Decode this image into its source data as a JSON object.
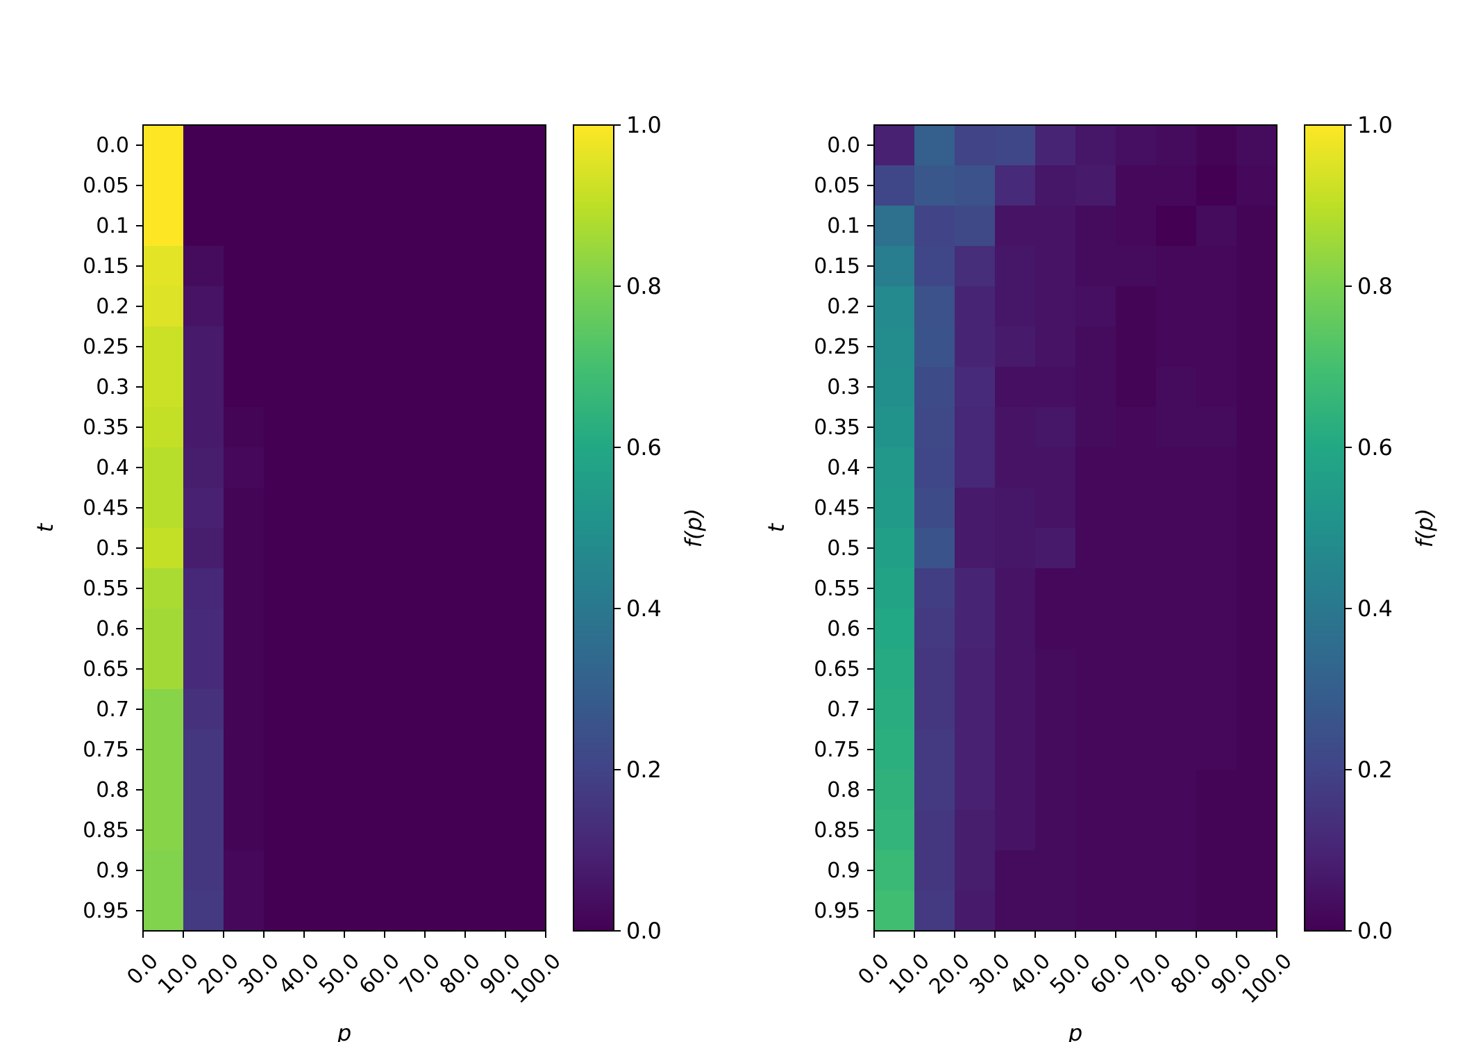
{
  "chart_data": [
    {
      "type": "heatmap",
      "title": "",
      "xlabel": "p",
      "ylabel": "t",
      "colorbar_label": "f(p)",
      "colormap": "viridis",
      "clim": [
        0.0,
        1.0
      ],
      "x_tick_labels": [
        "0.0",
        "10.0",
        "20.0",
        "30.0",
        "40.0",
        "50.0",
        "60.0",
        "70.0",
        "80.0",
        "90.0",
        "100.0"
      ],
      "y_tick_labels": [
        "0.0",
        "0.05",
        "0.1",
        "0.15",
        "0.2",
        "0.25",
        "0.3",
        "0.35",
        "0.4",
        "0.45",
        "0.5",
        "0.55",
        "0.6",
        "0.65",
        "0.7",
        "0.75",
        "0.8",
        "0.85",
        "0.9",
        "0.95"
      ],
      "colorbar_ticks": [
        "0.0",
        "0.2",
        "0.4",
        "0.6",
        "0.8",
        "1.0"
      ],
      "values": [
        [
          1.0,
          0.0,
          0.0,
          0.0,
          0.0,
          0.0,
          0.0,
          0.0,
          0.0,
          0.0
        ],
        [
          1.0,
          0.0,
          0.0,
          0.0,
          0.0,
          0.0,
          0.0,
          0.0,
          0.0,
          0.0
        ],
        [
          1.0,
          0.0,
          0.0,
          0.0,
          0.0,
          0.0,
          0.0,
          0.0,
          0.0,
          0.0
        ],
        [
          0.96,
          0.03,
          0.0,
          0.0,
          0.0,
          0.0,
          0.0,
          0.0,
          0.0,
          0.0
        ],
        [
          0.95,
          0.05,
          0.0,
          0.0,
          0.0,
          0.0,
          0.0,
          0.0,
          0.0,
          0.0
        ],
        [
          0.92,
          0.07,
          0.0,
          0.0,
          0.0,
          0.0,
          0.0,
          0.0,
          0.0,
          0.0
        ],
        [
          0.92,
          0.07,
          0.0,
          0.0,
          0.0,
          0.0,
          0.0,
          0.0,
          0.0,
          0.0
        ],
        [
          0.91,
          0.07,
          0.01,
          0.0,
          0.0,
          0.0,
          0.0,
          0.0,
          0.0,
          0.0
        ],
        [
          0.89,
          0.08,
          0.02,
          0.0,
          0.0,
          0.0,
          0.0,
          0.0,
          0.0,
          0.0
        ],
        [
          0.89,
          0.09,
          0.01,
          0.0,
          0.0,
          0.0,
          0.0,
          0.0,
          0.0,
          0.0
        ],
        [
          0.91,
          0.08,
          0.01,
          0.0,
          0.0,
          0.0,
          0.0,
          0.0,
          0.0,
          0.0
        ],
        [
          0.87,
          0.11,
          0.01,
          0.0,
          0.0,
          0.0,
          0.0,
          0.0,
          0.0,
          0.0
        ],
        [
          0.86,
          0.12,
          0.01,
          0.0,
          0.0,
          0.0,
          0.0,
          0.0,
          0.0,
          0.0
        ],
        [
          0.86,
          0.12,
          0.01,
          0.0,
          0.0,
          0.0,
          0.0,
          0.0,
          0.0,
          0.0
        ],
        [
          0.82,
          0.14,
          0.01,
          0.0,
          0.0,
          0.0,
          0.0,
          0.0,
          0.0,
          0.0
        ],
        [
          0.82,
          0.16,
          0.01,
          0.0,
          0.0,
          0.0,
          0.0,
          0.0,
          0.0,
          0.0
        ],
        [
          0.82,
          0.16,
          0.01,
          0.0,
          0.0,
          0.0,
          0.0,
          0.0,
          0.0,
          0.0
        ],
        [
          0.82,
          0.16,
          0.01,
          0.0,
          0.0,
          0.0,
          0.0,
          0.0,
          0.0,
          0.0
        ],
        [
          0.81,
          0.16,
          0.02,
          0.0,
          0.0,
          0.0,
          0.0,
          0.0,
          0.0,
          0.0
        ],
        [
          0.81,
          0.17,
          0.02,
          0.0,
          0.0,
          0.0,
          0.0,
          0.0,
          0.0,
          0.0
        ]
      ]
    },
    {
      "type": "heatmap",
      "title": "",
      "xlabel": "p",
      "ylabel": "t",
      "colorbar_label": "f(p)",
      "colormap": "viridis",
      "clim": [
        0.0,
        1.0
      ],
      "x_tick_labels": [
        "0.0",
        "10.0",
        "20.0",
        "30.0",
        "40.0",
        "50.0",
        "60.0",
        "70.0",
        "80.0",
        "90.0",
        "100.0"
      ],
      "y_tick_labels": [
        "0.0",
        "0.05",
        "0.1",
        "0.15",
        "0.2",
        "0.25",
        "0.3",
        "0.35",
        "0.4",
        "0.45",
        "0.5",
        "0.55",
        "0.6",
        "0.65",
        "0.7",
        "0.75",
        "0.8",
        "0.85",
        "0.9",
        "0.95"
      ],
      "colorbar_ticks": [
        "0.0",
        "0.2",
        "0.4",
        "0.6",
        "0.8",
        "1.0"
      ],
      "values": [
        [
          0.09,
          0.3,
          0.2,
          0.21,
          0.1,
          0.06,
          0.04,
          0.03,
          0.01,
          0.03
        ],
        [
          0.21,
          0.27,
          0.25,
          0.12,
          0.06,
          0.07,
          0.02,
          0.02,
          0.0,
          0.02
        ],
        [
          0.37,
          0.2,
          0.22,
          0.05,
          0.05,
          0.03,
          0.02,
          0.0,
          0.03,
          0.01
        ],
        [
          0.42,
          0.21,
          0.13,
          0.06,
          0.05,
          0.03,
          0.03,
          0.02,
          0.02,
          0.01
        ],
        [
          0.47,
          0.25,
          0.1,
          0.06,
          0.05,
          0.04,
          0.01,
          0.02,
          0.02,
          0.01
        ],
        [
          0.48,
          0.26,
          0.1,
          0.07,
          0.05,
          0.03,
          0.01,
          0.02,
          0.02,
          0.01
        ],
        [
          0.49,
          0.23,
          0.12,
          0.04,
          0.04,
          0.03,
          0.01,
          0.03,
          0.02,
          0.01
        ],
        [
          0.51,
          0.22,
          0.11,
          0.05,
          0.06,
          0.03,
          0.02,
          0.03,
          0.03,
          0.01
        ],
        [
          0.53,
          0.21,
          0.11,
          0.05,
          0.05,
          0.02,
          0.02,
          0.02,
          0.02,
          0.01
        ],
        [
          0.54,
          0.23,
          0.07,
          0.06,
          0.05,
          0.02,
          0.02,
          0.02,
          0.02,
          0.01
        ],
        [
          0.56,
          0.26,
          0.07,
          0.06,
          0.07,
          0.02,
          0.02,
          0.02,
          0.02,
          0.01
        ],
        [
          0.58,
          0.18,
          0.1,
          0.05,
          0.02,
          0.02,
          0.02,
          0.02,
          0.02,
          0.01
        ],
        [
          0.6,
          0.17,
          0.1,
          0.05,
          0.02,
          0.02,
          0.02,
          0.02,
          0.02,
          0.01
        ],
        [
          0.61,
          0.16,
          0.09,
          0.05,
          0.03,
          0.02,
          0.02,
          0.02,
          0.02,
          0.01
        ],
        [
          0.62,
          0.16,
          0.09,
          0.05,
          0.03,
          0.02,
          0.02,
          0.02,
          0.02,
          0.01
        ],
        [
          0.63,
          0.17,
          0.09,
          0.05,
          0.03,
          0.02,
          0.02,
          0.02,
          0.02,
          0.01
        ],
        [
          0.64,
          0.17,
          0.09,
          0.05,
          0.03,
          0.02,
          0.02,
          0.02,
          0.01,
          0.01
        ],
        [
          0.65,
          0.16,
          0.08,
          0.05,
          0.03,
          0.02,
          0.02,
          0.02,
          0.01,
          0.01
        ],
        [
          0.67,
          0.16,
          0.08,
          0.03,
          0.03,
          0.02,
          0.02,
          0.02,
          0.01,
          0.01
        ],
        [
          0.69,
          0.17,
          0.07,
          0.03,
          0.03,
          0.02,
          0.02,
          0.02,
          0.01,
          0.01
        ]
      ]
    }
  ]
}
